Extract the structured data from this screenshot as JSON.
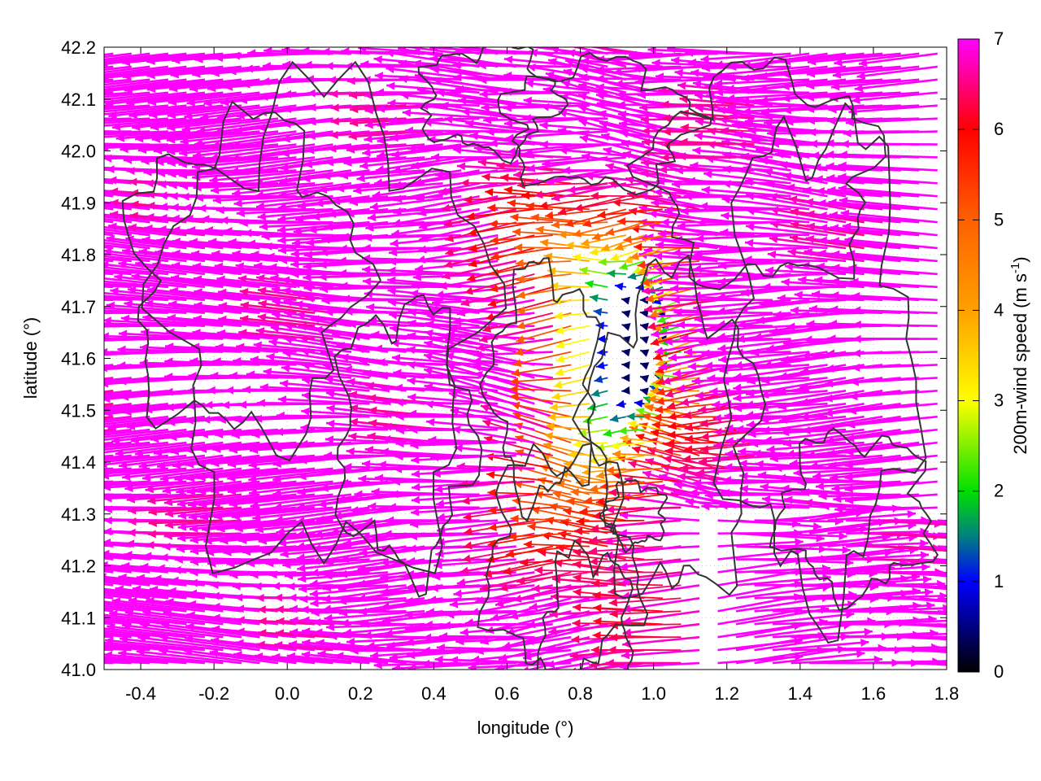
{
  "chart_data": {
    "type": "vector-field",
    "title": "",
    "xlabel": "longitude (°)",
    "ylabel": "latitude (°)",
    "xlim": [
      -0.5,
      1.8
    ],
    "ylim": [
      41.0,
      42.2
    ],
    "xticks": [
      {
        "value": -0.4,
        "label": "-0.4"
      },
      {
        "value": -0.2,
        "label": "-0.2"
      },
      {
        "value": 0.0,
        "label": "0.0"
      },
      {
        "value": 0.2,
        "label": "0.2"
      },
      {
        "value": 0.4,
        "label": "0.4"
      },
      {
        "value": 0.6,
        "label": "0.6"
      },
      {
        "value": 0.8,
        "label": "0.8"
      },
      {
        "value": 1.0,
        "label": "1.0"
      },
      {
        "value": 1.2,
        "label": "1.2"
      },
      {
        "value": 1.4,
        "label": "1.4"
      },
      {
        "value": 1.6,
        "label": "1.6"
      },
      {
        "value": 1.8,
        "label": "1.8"
      }
    ],
    "yticks": [
      {
        "value": 41.0,
        "label": "41.0"
      },
      {
        "value": 41.1,
        "label": "41.1"
      },
      {
        "value": 41.2,
        "label": "41.2"
      },
      {
        "value": 41.3,
        "label": "41.3"
      },
      {
        "value": 41.4,
        "label": "41.4"
      },
      {
        "value": 41.5,
        "label": "41.5"
      },
      {
        "value": 41.6,
        "label": "41.6"
      },
      {
        "value": 41.7,
        "label": "41.7"
      },
      {
        "value": 41.8,
        "label": "41.8"
      },
      {
        "value": 41.9,
        "label": "41.9"
      },
      {
        "value": 42.0,
        "label": "42.0"
      },
      {
        "value": 42.1,
        "label": "42.1"
      },
      {
        "value": 42.2,
        "label": "42.2"
      }
    ],
    "grid": true,
    "colorbar": {
      "label_main": "200m-wind speed (m s",
      "label_sup": "-1",
      "label_end": ")",
      "range": [
        0,
        7
      ],
      "ticks": [
        {
          "value": 0,
          "label": "0"
        },
        {
          "value": 1,
          "label": "1"
        },
        {
          "value": 2,
          "label": "2"
        },
        {
          "value": 3,
          "label": "3"
        },
        {
          "value": 4,
          "label": "4"
        },
        {
          "value": 5,
          "label": "5"
        },
        {
          "value": 6,
          "label": "6"
        },
        {
          "value": 7,
          "label": "7"
        }
      ],
      "palette": [
        {
          "value": 0,
          "color": "#000000"
        },
        {
          "value": 1,
          "color": "#0000ff"
        },
        {
          "value": 1.5,
          "color": "#008080"
        },
        {
          "value": 2,
          "color": "#00e000"
        },
        {
          "value": 3,
          "color": "#ffff00"
        },
        {
          "value": 4,
          "color": "#ffa000"
        },
        {
          "value": 5,
          "color": "#ff6000"
        },
        {
          "value": 6,
          "color": "#ff0000"
        },
        {
          "value": 7,
          "color": "#ff00ff"
        }
      ]
    },
    "contour_color": "#333333",
    "vector_spacing": {
      "dx": 0.05,
      "dy": 0.025
    }
  }
}
